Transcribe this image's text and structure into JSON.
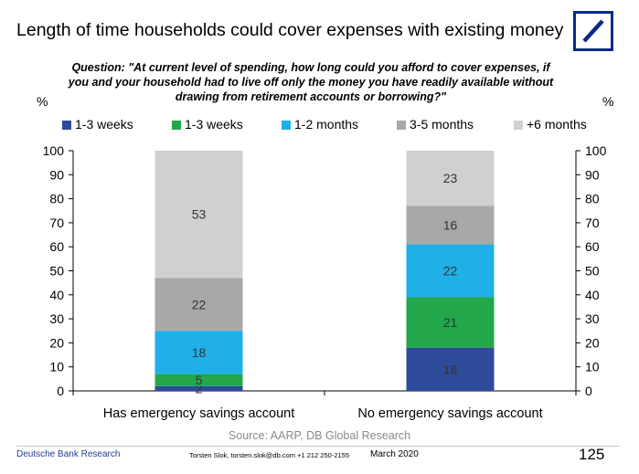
{
  "header": {
    "title": "Length of time households could cover expenses with existing money",
    "question_lines": [
      "Question: \"At current level of spending, how long could you afford to cover expenses, if",
      "you and your household had to live off only the money you have readily available without",
      "drawing from retirement accounts or borrowing?\""
    ],
    "logo": "deutsche-bank-logo",
    "brand_color": "#0a2a8a"
  },
  "axis_labels": {
    "left_unit": "%",
    "right_unit": "%"
  },
  "source": "Source: AARP, DB Global Research",
  "footer": {
    "org": "Deutsche Bank Research",
    "contact": "Torsten Slok, torsten.slok@db.com  +1 212 250-2155",
    "date": "March  2020",
    "page": "125"
  },
  "chart_data": {
    "type": "bar",
    "stacked": true,
    "categories": [
      "Has emergency savings account",
      "No emergency savings account"
    ],
    "series": [
      {
        "name": "1-3 weeks",
        "color": "#2e4b9b",
        "values": [
          2,
          18
        ]
      },
      {
        "name": "1-3 weeks",
        "color": "#22a84a",
        "values": [
          5,
          21
        ]
      },
      {
        "name": "1-2 months",
        "color": "#1fb0e8",
        "values": [
          18,
          22
        ]
      },
      {
        "name": "3-5 months",
        "color": "#a8a8a8",
        "values": [
          22,
          16
        ]
      },
      {
        "name": "+6 months",
        "color": "#d0d0d0",
        "values": [
          53,
          23
        ]
      }
    ],
    "ylim": [
      0,
      100
    ],
    "yticks": [
      0,
      10,
      20,
      30,
      40,
      50,
      60,
      70,
      80,
      90,
      100
    ],
    "dual_y_axis": true,
    "grid": false,
    "legend_position": "top"
  }
}
